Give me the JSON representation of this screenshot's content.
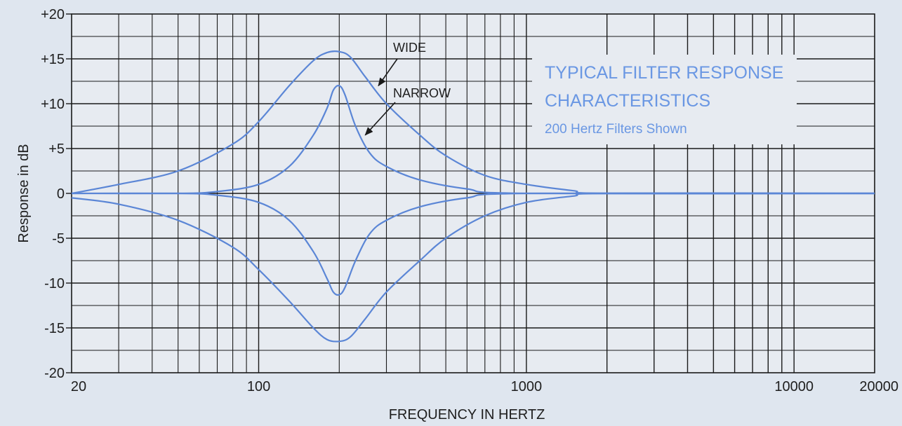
{
  "chart_data": {
    "type": "line",
    "x_scale": "log",
    "xlim": [
      20,
      20000
    ],
    "ylim": [
      -20,
      20
    ],
    "xlabel": "FREQUENCY IN HERTZ",
    "ylabel": "Response in dB",
    "x_ticks": [
      {
        "value": 20,
        "label": "20"
      },
      {
        "value": 100,
        "label": "100"
      },
      {
        "value": 1000,
        "label": "1000"
      },
      {
        "value": 10000,
        "label": "10000"
      },
      {
        "value": 20000,
        "label": "20000"
      }
    ],
    "y_ticks": [
      {
        "value": 20,
        "label": "+20"
      },
      {
        "value": 15,
        "label": "+15"
      },
      {
        "value": 10,
        "label": "+10"
      },
      {
        "value": 5,
        "label": "+5"
      },
      {
        "value": 0,
        "label": "0"
      },
      {
        "value": -5,
        "label": "-5"
      },
      {
        "value": -10,
        "label": "-10"
      },
      {
        "value": -15,
        "label": "-15"
      },
      {
        "value": -20,
        "label": "-20"
      }
    ],
    "grid": true,
    "series": [
      {
        "group": "wide",
        "x": [
          20,
          30,
          50,
          80,
          100,
          130,
          160,
          180,
          200,
          220,
          250,
          300,
          400,
          500,
          700,
          1000,
          1500,
          2000,
          20000
        ],
        "y": [
          0,
          1,
          2.5,
          5.5,
          8,
          12,
          14.8,
          15.7,
          15.8,
          15.2,
          13,
          10,
          6.5,
          4.2,
          2,
          1,
          0.3,
          0,
          0
        ]
      },
      {
        "group": "narrow",
        "x": [
          20,
          50,
          70,
          100,
          130,
          160,
          180,
          190,
          200,
          210,
          230,
          260,
          300,
          400,
          600,
          1000,
          20000
        ],
        "y": [
          0,
          0,
          0.2,
          1,
          3,
          6.5,
          9.5,
          11.5,
          12,
          11,
          7.5,
          4.5,
          3,
          1.5,
          0.5,
          0,
          0
        ]
      },
      {
        "group": "narrow",
        "x": [
          20,
          50,
          70,
          100,
          130,
          160,
          180,
          190,
          200,
          210,
          230,
          260,
          300,
          400,
          600,
          1000,
          20000
        ],
        "y": [
          0,
          0,
          -0.2,
          -1,
          -3,
          -6.5,
          -9.5,
          -11,
          -11.3,
          -10.5,
          -7.5,
          -4.5,
          -3,
          -1.5,
          -0.5,
          0,
          0
        ]
      },
      {
        "group": "wide",
        "x": [
          20,
          30,
          50,
          80,
          100,
          130,
          160,
          180,
          200,
          220,
          250,
          300,
          400,
          500,
          700,
          1000,
          1500,
          2000,
          20000
        ],
        "y": [
          -0.5,
          -1.2,
          -3,
          -6,
          -8.5,
          -12,
          -15,
          -16.3,
          -16.5,
          -16,
          -14,
          -11,
          -7.5,
          -5,
          -2.5,
          -1,
          -0.3,
          0,
          0
        ]
      }
    ],
    "annotations": [
      {
        "label": "WIDE",
        "target": {
          "x": 280,
          "y": 12
        }
      },
      {
        "label": "NARROW",
        "target": {
          "x": 250,
          "y": 6.5
        }
      }
    ],
    "text_box": {
      "line1": "TYPICAL FILTER RESPONSE",
      "line2": "CHARACTERISTICS",
      "line3": "200 Hertz Filters Shown"
    },
    "colors": {
      "background": "#dfe6ef",
      "plot_background": "#e7ebf1",
      "grid": "#1a1a1a",
      "curve": "#5b86d6",
      "box_text": "#6a97e3"
    }
  }
}
